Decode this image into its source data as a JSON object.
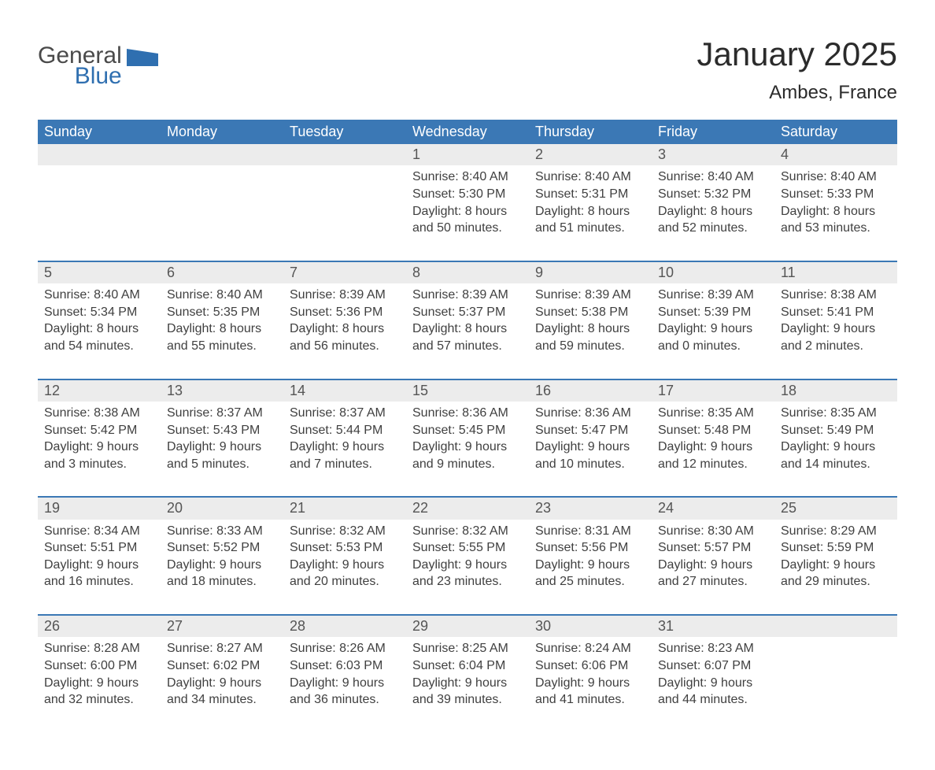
{
  "logo": {
    "line1": "General",
    "line2": "Blue",
    "shape_color": "#2f6fb0",
    "text_color_gray": "#4a4a4a"
  },
  "header": {
    "title": "January 2025",
    "location": "Ambes, France"
  },
  "colors": {
    "header_bg": "#3b78b5",
    "header_fg": "#ffffff",
    "daynum_bg": "#ececec",
    "row_border": "#3b78b5",
    "body_text": "#404040"
  },
  "weekdays": [
    "Sunday",
    "Monday",
    "Tuesday",
    "Wednesday",
    "Thursday",
    "Friday",
    "Saturday"
  ],
  "weeks": [
    [
      {
        "blank": true
      },
      {
        "blank": true
      },
      {
        "blank": true
      },
      {
        "num": "1",
        "sunrise": "Sunrise: 8:40 AM",
        "sunset": "Sunset: 5:30 PM",
        "day1": "Daylight: 8 hours",
        "day2": "and 50 minutes."
      },
      {
        "num": "2",
        "sunrise": "Sunrise: 8:40 AM",
        "sunset": "Sunset: 5:31 PM",
        "day1": "Daylight: 8 hours",
        "day2": "and 51 minutes."
      },
      {
        "num": "3",
        "sunrise": "Sunrise: 8:40 AM",
        "sunset": "Sunset: 5:32 PM",
        "day1": "Daylight: 8 hours",
        "day2": "and 52 minutes."
      },
      {
        "num": "4",
        "sunrise": "Sunrise: 8:40 AM",
        "sunset": "Sunset: 5:33 PM",
        "day1": "Daylight: 8 hours",
        "day2": "and 53 minutes."
      }
    ],
    [
      {
        "num": "5",
        "sunrise": "Sunrise: 8:40 AM",
        "sunset": "Sunset: 5:34 PM",
        "day1": "Daylight: 8 hours",
        "day2": "and 54 minutes."
      },
      {
        "num": "6",
        "sunrise": "Sunrise: 8:40 AM",
        "sunset": "Sunset: 5:35 PM",
        "day1": "Daylight: 8 hours",
        "day2": "and 55 minutes."
      },
      {
        "num": "7",
        "sunrise": "Sunrise: 8:39 AM",
        "sunset": "Sunset: 5:36 PM",
        "day1": "Daylight: 8 hours",
        "day2": "and 56 minutes."
      },
      {
        "num": "8",
        "sunrise": "Sunrise: 8:39 AM",
        "sunset": "Sunset: 5:37 PM",
        "day1": "Daylight: 8 hours",
        "day2": "and 57 minutes."
      },
      {
        "num": "9",
        "sunrise": "Sunrise: 8:39 AM",
        "sunset": "Sunset: 5:38 PM",
        "day1": "Daylight: 8 hours",
        "day2": "and 59 minutes."
      },
      {
        "num": "10",
        "sunrise": "Sunrise: 8:39 AM",
        "sunset": "Sunset: 5:39 PM",
        "day1": "Daylight: 9 hours",
        "day2": "and 0 minutes."
      },
      {
        "num": "11",
        "sunrise": "Sunrise: 8:38 AM",
        "sunset": "Sunset: 5:41 PM",
        "day1": "Daylight: 9 hours",
        "day2": "and 2 minutes."
      }
    ],
    [
      {
        "num": "12",
        "sunrise": "Sunrise: 8:38 AM",
        "sunset": "Sunset: 5:42 PM",
        "day1": "Daylight: 9 hours",
        "day2": "and 3 minutes."
      },
      {
        "num": "13",
        "sunrise": "Sunrise: 8:37 AM",
        "sunset": "Sunset: 5:43 PM",
        "day1": "Daylight: 9 hours",
        "day2": "and 5 minutes."
      },
      {
        "num": "14",
        "sunrise": "Sunrise: 8:37 AM",
        "sunset": "Sunset: 5:44 PM",
        "day1": "Daylight: 9 hours",
        "day2": "and 7 minutes."
      },
      {
        "num": "15",
        "sunrise": "Sunrise: 8:36 AM",
        "sunset": "Sunset: 5:45 PM",
        "day1": "Daylight: 9 hours",
        "day2": "and 9 minutes."
      },
      {
        "num": "16",
        "sunrise": "Sunrise: 8:36 AM",
        "sunset": "Sunset: 5:47 PM",
        "day1": "Daylight: 9 hours",
        "day2": "and 10 minutes."
      },
      {
        "num": "17",
        "sunrise": "Sunrise: 8:35 AM",
        "sunset": "Sunset: 5:48 PM",
        "day1": "Daylight: 9 hours",
        "day2": "and 12 minutes."
      },
      {
        "num": "18",
        "sunrise": "Sunrise: 8:35 AM",
        "sunset": "Sunset: 5:49 PM",
        "day1": "Daylight: 9 hours",
        "day2": "and 14 minutes."
      }
    ],
    [
      {
        "num": "19",
        "sunrise": "Sunrise: 8:34 AM",
        "sunset": "Sunset: 5:51 PM",
        "day1": "Daylight: 9 hours",
        "day2": "and 16 minutes."
      },
      {
        "num": "20",
        "sunrise": "Sunrise: 8:33 AM",
        "sunset": "Sunset: 5:52 PM",
        "day1": "Daylight: 9 hours",
        "day2": "and 18 minutes."
      },
      {
        "num": "21",
        "sunrise": "Sunrise: 8:32 AM",
        "sunset": "Sunset: 5:53 PM",
        "day1": "Daylight: 9 hours",
        "day2": "and 20 minutes."
      },
      {
        "num": "22",
        "sunrise": "Sunrise: 8:32 AM",
        "sunset": "Sunset: 5:55 PM",
        "day1": "Daylight: 9 hours",
        "day2": "and 23 minutes."
      },
      {
        "num": "23",
        "sunrise": "Sunrise: 8:31 AM",
        "sunset": "Sunset: 5:56 PM",
        "day1": "Daylight: 9 hours",
        "day2": "and 25 minutes."
      },
      {
        "num": "24",
        "sunrise": "Sunrise: 8:30 AM",
        "sunset": "Sunset: 5:57 PM",
        "day1": "Daylight: 9 hours",
        "day2": "and 27 minutes."
      },
      {
        "num": "25",
        "sunrise": "Sunrise: 8:29 AM",
        "sunset": "Sunset: 5:59 PM",
        "day1": "Daylight: 9 hours",
        "day2": "and 29 minutes."
      }
    ],
    [
      {
        "num": "26",
        "sunrise": "Sunrise: 8:28 AM",
        "sunset": "Sunset: 6:00 PM",
        "day1": "Daylight: 9 hours",
        "day2": "and 32 minutes."
      },
      {
        "num": "27",
        "sunrise": "Sunrise: 8:27 AM",
        "sunset": "Sunset: 6:02 PM",
        "day1": "Daylight: 9 hours",
        "day2": "and 34 minutes."
      },
      {
        "num": "28",
        "sunrise": "Sunrise: 8:26 AM",
        "sunset": "Sunset: 6:03 PM",
        "day1": "Daylight: 9 hours",
        "day2": "and 36 minutes."
      },
      {
        "num": "29",
        "sunrise": "Sunrise: 8:25 AM",
        "sunset": "Sunset: 6:04 PM",
        "day1": "Daylight: 9 hours",
        "day2": "and 39 minutes."
      },
      {
        "num": "30",
        "sunrise": "Sunrise: 8:24 AM",
        "sunset": "Sunset: 6:06 PM",
        "day1": "Daylight: 9 hours",
        "day2": "and 41 minutes."
      },
      {
        "num": "31",
        "sunrise": "Sunrise: 8:23 AM",
        "sunset": "Sunset: 6:07 PM",
        "day1": "Daylight: 9 hours",
        "day2": "and 44 minutes."
      },
      {
        "blank": true
      }
    ]
  ]
}
